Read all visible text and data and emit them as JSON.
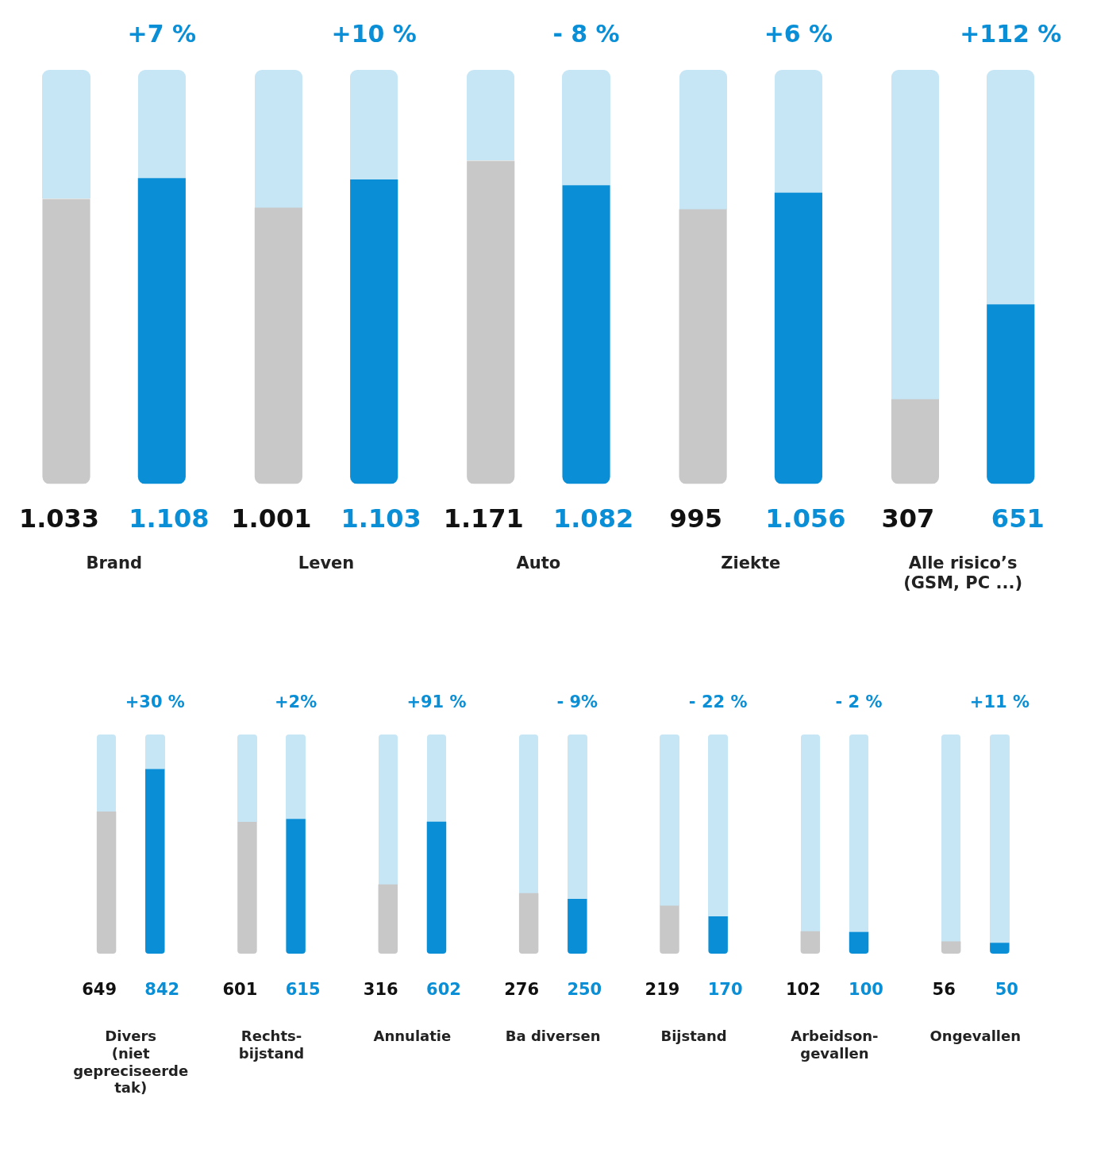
{
  "chart_data": [
    {
      "type": "bar",
      "categories": [
        "Brand",
        "Leven",
        "Auto",
        "Ziekte",
        "Alle risico’s\n(GSM, PC ...)"
      ],
      "series": [
        {
          "color": "#c8c8c8",
          "values": [
            1033,
            1001,
            1171,
            995,
            307
          ],
          "value_labels": [
            "1.033",
            "1.001",
            "1.171",
            "995",
            "307"
          ]
        },
        {
          "color": "#0a8fd6",
          "values": [
            1108,
            1103,
            1082,
            1056,
            651
          ],
          "value_labels": [
            "1.108",
            "1.103",
            "1.082",
            "1.056",
            "651"
          ]
        }
      ],
      "ylim": [
        0,
        1500
      ],
      "annotations": [
        "+7 %",
        "+10 %",
        "- 8 %",
        "+6 %",
        "+112 %"
      ],
      "grid": false,
      "legend": false
    },
    {
      "type": "bar",
      "categories": [
        "Divers\n(niet\ngepreciseerde\ntak)",
        "Rechts-\nbijstand",
        "Annulatie",
        "Ba diversen",
        "Bijstand",
        "Arbeidson-\ngevallen",
        "Ongevallen"
      ],
      "series": [
        {
          "color": "#c8c8c8",
          "values": [
            649,
            601,
            316,
            276,
            219,
            102,
            56
          ],
          "value_labels": [
            "649",
            "601",
            "316",
            "276",
            "219",
            "102",
            "56"
          ]
        },
        {
          "color": "#0a8fd6",
          "values": [
            842,
            615,
            602,
            250,
            170,
            100,
            50
          ],
          "value_labels": [
            "842",
            "615",
            "602",
            "250",
            "170",
            "100",
            "50"
          ]
        }
      ],
      "ylim": [
        0,
        1000
      ],
      "annotations": [
        "+30 %",
        "+2%",
        "+91 %",
        "- 9%",
        "- 22 %",
        "- 2 %",
        "+11 %"
      ],
      "grid": false,
      "legend": false
    }
  ]
}
